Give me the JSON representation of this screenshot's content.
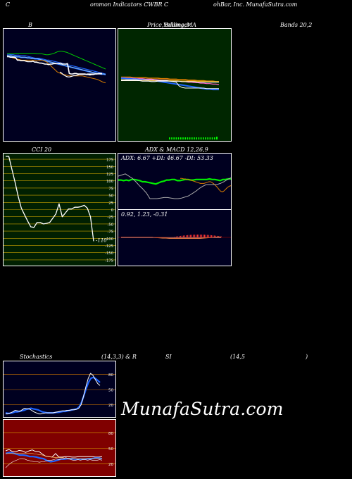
{
  "header": {
    "line_a": "C",
    "line_b": "ommon  Indicators CWBR C",
    "line_c": "ohBar, Inc. MunafaSutra.com"
  },
  "watermark": "MunafaSutra.com",
  "colors": {
    "navy": "#000020",
    "darkgreen": "#002600",
    "olive": "#012001",
    "maroon": "#800000",
    "blue": "#1e64ff",
    "green": "#00cc00",
    "orange": "#d87c00"
  },
  "titles": {
    "bb_left": "B",
    "bb_mid_a": "Price,",
    "bb_mid_b": "Volume,",
    "bb_mid_c": "Bollinger",
    "bb_mid_d": "MA",
    "bb_right": "Bands 20,2",
    "cci": "CCI 20",
    "adx": "ADX  & MACD 12,26,9",
    "stoch_a": "Stochastics",
    "stoch_b": "(14,3,3) & R",
    "stoch_c": "SI",
    "stoch_d": "(14,5",
    "stoch_e": ")"
  },
  "chart_data": [
    {
      "type": "line",
      "name": "bollinger_bands",
      "title": "Price, Volume, Bollinger Bands 20,2",
      "series": [
        {
          "values": [
            80,
            80,
            81,
            81,
            82,
            82,
            82,
            83,
            83,
            83,
            84,
            85,
            86,
            87,
            88,
            88,
            88,
            89,
            90,
            91,
            92,
            92,
            93,
            94,
            95,
            96,
            97,
            98,
            99,
            100,
            101,
            102,
            103,
            104,
            105,
            106,
            107,
            108,
            109,
            110,
            111,
            112,
            113,
            114,
            115,
            116,
            117,
            118,
            119,
            120
          ]
        },
        {
          "values": [
            83,
            84,
            84,
            85,
            85,
            86,
            86,
            87,
            87,
            87,
            88,
            88,
            89,
            89,
            90,
            90,
            91,
            92,
            93,
            94,
            95,
            96,
            97,
            98,
            99,
            100,
            101,
            102,
            103,
            104,
            105,
            106,
            107,
            108,
            109,
            110,
            111,
            112,
            113,
            114,
            115,
            116,
            117,
            118,
            119,
            120,
            120,
            121,
            121,
            122
          ]
        },
        {
          "values": [
            82,
            83,
            83,
            84,
            84,
            85,
            85,
            86,
            86,
            86,
            87,
            87,
            88,
            88,
            89,
            89,
            90,
            91,
            92,
            93,
            94,
            95,
            96,
            97,
            98,
            99,
            100,
            101,
            102,
            103,
            104,
            105,
            106,
            107,
            108,
            109,
            110,
            111,
            112,
            113,
            114,
            115,
            116,
            117,
            118,
            119,
            119,
            120,
            120,
            121
          ]
        },
        {
          "values": [
            79,
            79,
            79,
            79,
            78,
            78,
            78,
            78,
            78,
            78,
            78,
            78,
            78,
            79,
            79,
            79,
            80,
            81,
            81,
            80,
            79,
            77,
            75,
            74,
            74,
            75,
            76,
            78,
            80,
            82,
            84,
            86,
            88,
            90,
            92,
            94,
            96,
            98,
            100,
            102,
            104,
            106,
            108,
            110
          ]
        },
        {
          "values": [
            84,
            85,
            86,
            88,
            89,
            90,
            91,
            92,
            92,
            92,
            92,
            92,
            92,
            92,
            93,
            93,
            92,
            92,
            94,
            96,
            100,
            104,
            108,
            112,
            116,
            118,
            120,
            121,
            122,
            123,
            124,
            124,
            124,
            124,
            124,
            124,
            124,
            125,
            126,
            127,
            128,
            129,
            130,
            131,
            133,
            135,
            137,
            138
          ]
        },
        {
          "values": [
            85,
            85,
            86,
            86,
            86,
            87,
            92,
            92,
            93,
            93,
            93,
            94,
            95,
            95,
            95,
            94,
            96,
            96,
            97,
            98,
            98,
            99,
            100,
            100,
            101,
            100,
            100,
            99,
            99,
            99,
            99,
            98,
            100,
            100,
            100,
            99,
            119,
            120,
            120,
            119,
            119,
            120,
            120,
            120,
            120,
            120,
            121,
            121,
            122,
            121,
            121,
            120,
            120,
            119,
            119,
            119
          ]
        },
        {
          "values": [
            116,
            118,
            121,
            123,
            125,
            126,
            126,
            125,
            124,
            123,
            123,
            122,
            121,
            121,
            121,
            121,
            121,
            120,
            120,
            120,
            120,
            120,
            120,
            120,
            120,
            120,
            120
          ]
        }
      ]
    },
    {
      "type": "line",
      "name": "price_volume_ma",
      "title": "Price, Volume, MA",
      "series": [
        {
          "values": [
            108,
            108,
            108,
            108,
            109,
            109,
            109,
            109,
            109,
            110,
            110,
            110,
            110,
            111,
            111,
            111,
            112,
            112,
            112,
            113,
            113,
            113,
            114,
            114,
            114,
            115,
            115,
            115,
            116,
            116,
            116,
            117,
            117
          ]
        },
        {
          "values": [
            109,
            109,
            110,
            110,
            110,
            111,
            111,
            111,
            112,
            112,
            112,
            113,
            113,
            114,
            114,
            114,
            115,
            115,
            116,
            116,
            117,
            117,
            118,
            118,
            119,
            119,
            120,
            120,
            121,
            121,
            122,
            122,
            123
          ]
        },
        {
          "values": [
            110,
            110,
            111,
            111,
            112,
            112,
            113,
            113,
            114,
            114,
            115,
            115,
            116,
            117,
            118,
            119,
            120,
            121,
            122,
            123,
            124,
            125,
            126,
            127,
            128,
            129,
            130,
            131,
            132,
            132,
            133,
            133,
            133
          ]
        },
        {
          "values": [
            114,
            114,
            114,
            114,
            114,
            114,
            114,
            114,
            114,
            115,
            115,
            115,
            115,
            115,
            115,
            115,
            115,
            115,
            115,
            116,
            116,
            116,
            116,
            116,
            116,
            116,
            116,
            116,
            117,
            117,
            117,
            117,
            117
          ]
        },
        {
          "values": [
            113,
            113,
            113,
            113,
            113,
            113,
            114,
            114,
            114,
            114,
            114,
            114,
            115,
            115,
            115,
            115,
            116,
            116,
            116,
            116,
            117,
            117,
            117,
            117,
            117,
            118,
            118,
            118,
            118,
            118,
            118,
            118,
            118
          ]
        },
        {
          "values": [
            115,
            115,
            115,
            115,
            115,
            115,
            115,
            116,
            116,
            116,
            117,
            117,
            116,
            116,
            116,
            116,
            116,
            117,
            118,
            126,
            129,
            130,
            130,
            130,
            130,
            130,
            130,
            130,
            131,
            131,
            131,
            131,
            131
          ]
        }
      ]
    },
    {
      "type": "line",
      "name": "cci",
      "title": "CCI 20",
      "last_label": "-110",
      "ticks": [
        175,
        150,
        125,
        100,
        75,
        50,
        25,
        0,
        -25,
        -50,
        -75,
        -100,
        -125,
        -150,
        -175
      ],
      "ylim": [
        -185,
        185
      ],
      "values": [
        185,
        185,
        140,
        95,
        45,
        5,
        -18,
        -40,
        -60,
        -62,
        -45,
        -45,
        -50,
        -48,
        -45,
        -30,
        -15,
        20,
        -25,
        -12,
        2,
        2,
        8,
        8,
        10,
        15,
        5,
        -25,
        -110
      ]
    },
    {
      "type": "line",
      "name": "adx",
      "title": "ADX  & MACD 12,26,9",
      "label": "ADX: 6.67 +DI: 46.67 -DI: 53.33",
      "series": [
        {
          "values": [
            47,
            47,
            48,
            47,
            48,
            46,
            46,
            47,
            48,
            50,
            50,
            51,
            52,
            53,
            54,
            52,
            50,
            49,
            47,
            47,
            46,
            46,
            48,
            48,
            47,
            46,
            46,
            47,
            47,
            46,
            46,
            46,
            46,
            46,
            45,
            46,
            46,
            47,
            48,
            46,
            46,
            45,
            45
          ]
        },
        {
          "values": [
            44,
            44,
            45,
            45,
            46,
            46,
            47,
            48,
            49,
            50,
            51,
            52,
            53,
            53,
            53,
            52,
            51,
            50,
            50,
            52,
            54,
            57,
            60,
            64,
            67,
            68,
            66,
            63,
            60,
            58,
            57
          ]
        },
        {
          "values": [
            40,
            38,
            36,
            40,
            44,
            50,
            57,
            63,
            70,
            80,
            80,
            80,
            79,
            78,
            78,
            79,
            80,
            80,
            79,
            77,
            75,
            71,
            67,
            62,
            58,
            55,
            55,
            55,
            55,
            53,
            50,
            46,
            43
          ]
        }
      ]
    },
    {
      "type": "line",
      "name": "macd",
      "label": "0.92,  1.23,  -0.31",
      "series": [
        {
          "values": [
            98,
            98,
            98,
            98,
            98,
            98,
            98,
            98,
            98,
            98,
            98,
            98,
            98,
            98,
            98,
            98,
            98,
            98,
            98,
            98,
            98,
            98,
            98,
            98,
            98,
            98,
            98,
            98,
            98,
            98,
            98,
            98,
            98,
            98,
            98,
            98,
            98,
            98
          ]
        },
        {
          "values": [
            97,
            97,
            97,
            97,
            97,
            97,
            97,
            97,
            97,
            97,
            98,
            99,
            100,
            100,
            101,
            101,
            101,
            101,
            101,
            101,
            101,
            101,
            101,
            101,
            100,
            99,
            98,
            97,
            96,
            96
          ]
        }
      ]
    },
    {
      "type": "line",
      "name": "stochastics",
      "title": "Stochastics (14,3,3)",
      "ticks": [
        80,
        50,
        20
      ],
      "ylim": [
        0,
        100
      ],
      "series": [
        {
          "values": [
            2,
            2,
            4,
            6,
            9,
            8,
            7,
            10,
            13,
            12,
            12,
            9,
            6,
            4,
            2,
            2,
            3,
            4,
            4,
            4,
            4,
            5,
            6,
            7,
            8,
            8,
            9,
            9,
            10,
            10,
            11,
            13,
            20,
            36,
            55,
            72,
            82,
            78,
            70,
            62,
            58
          ]
        },
        {
          "values": [
            4,
            3,
            3,
            4,
            6,
            6,
            7,
            8,
            9,
            11,
            12,
            13,
            12,
            11,
            10,
            8,
            6,
            5,
            4,
            4,
            4,
            4,
            5,
            5,
            6,
            7,
            7,
            8,
            9,
            10,
            11,
            12,
            16,
            25,
            38,
            52,
            64,
            72,
            74,
            72,
            68,
            64
          ]
        }
      ]
    },
    {
      "type": "line",
      "name": "rsi",
      "title": "RSI (14,5)",
      "ticks": [
        80,
        50,
        20
      ],
      "ylim": [
        0,
        100
      ],
      "series": [
        {
          "values": [
            45,
            48,
            44,
            43,
            46,
            45,
            42,
            45,
            47,
            44,
            44,
            39,
            35,
            34,
            33,
            40,
            33,
            33,
            34,
            34,
            33,
            33,
            34,
            34,
            34,
            34,
            34,
            33,
            33,
            34
          ]
        },
        {
          "values": [
            40,
            42,
            41,
            39,
            37,
            37,
            36,
            34,
            34,
            33,
            31,
            30,
            26,
            24,
            25,
            27,
            29,
            29,
            30,
            30,
            29,
            29,
            29,
            29,
            30,
            30,
            31,
            31,
            30
          ]
        },
        {
          "values": [
            40,
            40,
            40,
            40,
            40,
            40,
            40,
            40,
            40,
            39,
            38,
            37,
            35,
            34,
            33,
            32,
            32,
            32,
            31,
            31,
            31,
            30,
            30,
            30,
            30,
            30,
            31,
            31,
            31,
            31
          ]
        },
        {
          "values": [
            12,
            17,
            21,
            24,
            26,
            28,
            30,
            30,
            29,
            27,
            26,
            25,
            24,
            24,
            23,
            24,
            24,
            26,
            27,
            27,
            28,
            30,
            28,
            29,
            30,
            32,
            30,
            28,
            27,
            27,
            28,
            27,
            28,
            28,
            27,
            28,
            27,
            27,
            27,
            28,
            27
          ]
        }
      ]
    }
  ]
}
